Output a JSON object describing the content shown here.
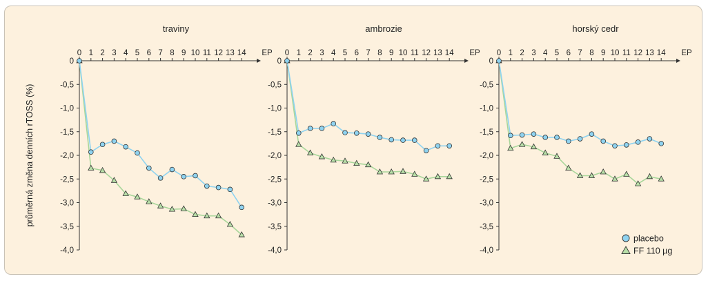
{
  "chart_data": {
    "type": "line",
    "ylabel": "průměrná změna denních rTOSS (%)",
    "x_ticks": [
      "0",
      "1",
      "2",
      "3",
      "4",
      "5",
      "6",
      "7",
      "8",
      "9",
      "10",
      "11",
      "12",
      "13",
      "14",
      "EP"
    ],
    "y_ticks": [
      "0",
      "-0,5",
      "-1,0",
      "-1,5",
      "-2,0",
      "-2,5",
      "-3,0",
      "-3,5",
      "-4,0"
    ],
    "ylim": [
      -4.0,
      0
    ],
    "grid": false,
    "legend": {
      "placement": "bottom-right",
      "entries": [
        {
          "name": "placebo",
          "color": "#8fd3f0",
          "marker": "circle"
        },
        {
          "name": "FF 110 µg",
          "color": "#b8dfa8",
          "marker": "triangle"
        }
      ]
    },
    "colors": {
      "placebo_line": "#8fd3f0",
      "ff_line": "#a8d69a",
      "axis": "#333333"
    },
    "panels": [
      {
        "title": "traviny",
        "series": [
          {
            "name": "placebo",
            "x": [
              0,
              1,
              2,
              3,
              4,
              5,
              6,
              7,
              8,
              9,
              10,
              11,
              12,
              13,
              14
            ],
            "values": [
              0,
              -1.93,
              -1.77,
              -1.7,
              -1.82,
              -1.95,
              -2.27,
              -2.48,
              -2.3,
              -2.45,
              -2.43,
              -2.65,
              -2.68,
              -2.72,
              -3.1
            ]
          },
          {
            "name": "FF 110 µg",
            "x": [
              0,
              1,
              2,
              3,
              4,
              5,
              6,
              7,
              8,
              9,
              10,
              11,
              12,
              13,
              14
            ],
            "values": [
              0,
              -2.27,
              -2.32,
              -2.53,
              -2.81,
              -2.88,
              -2.98,
              -3.07,
              -3.14,
              -3.13,
              -3.25,
              -3.28,
              -3.28,
              -3.46,
              -3.68
            ]
          }
        ]
      },
      {
        "title": "ambrozie",
        "series": [
          {
            "name": "placebo",
            "x": [
              0,
              1,
              2,
              3,
              4,
              5,
              6,
              7,
              8,
              9,
              10,
              11,
              12,
              13,
              14
            ],
            "values": [
              0,
              -1.53,
              -1.43,
              -1.43,
              -1.33,
              -1.52,
              -1.53,
              -1.55,
              -1.62,
              -1.67,
              -1.68,
              -1.68,
              -1.9,
              -1.8,
              -1.8
            ]
          },
          {
            "name": "FF 110 µg",
            "x": [
              0,
              1,
              2,
              3,
              4,
              5,
              6,
              7,
              8,
              9,
              10,
              11,
              12,
              13,
              14
            ],
            "values": [
              0,
              -1.77,
              -1.95,
              -2.03,
              -2.1,
              -2.12,
              -2.17,
              -2.2,
              -2.35,
              -2.35,
              -2.34,
              -2.4,
              -2.5,
              -2.45,
              -2.45
            ]
          }
        ]
      },
      {
        "title": "horský cedr",
        "series": [
          {
            "name": "placebo",
            "x": [
              0,
              1,
              2,
              3,
              4,
              5,
              6,
              7,
              8,
              9,
              10,
              11,
              12,
              13,
              14
            ],
            "values": [
              0,
              -1.58,
              -1.57,
              -1.55,
              -1.62,
              -1.62,
              -1.7,
              -1.65,
              -1.55,
              -1.7,
              -1.8,
              -1.78,
              -1.72,
              -1.65,
              -1.75
            ]
          },
          {
            "name": "FF 110 µg",
            "x": [
              0,
              1,
              2,
              3,
              4,
              5,
              6,
              7,
              8,
              9,
              10,
              11,
              12,
              13,
              14
            ],
            "values": [
              0,
              -1.85,
              -1.77,
              -1.82,
              -1.95,
              -2.02,
              -2.27,
              -2.43,
              -2.43,
              -2.35,
              -2.5,
              -2.4,
              -2.6,
              -2.45,
              -2.5
            ]
          }
        ]
      }
    ]
  }
}
